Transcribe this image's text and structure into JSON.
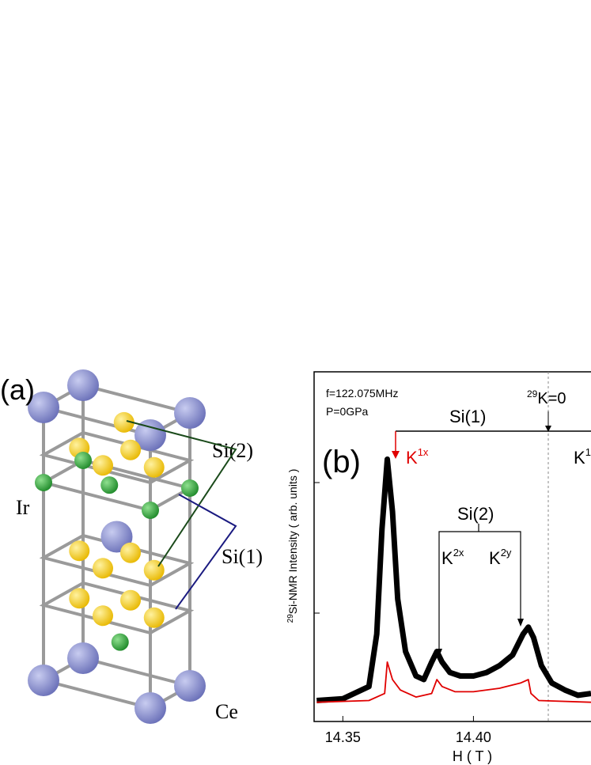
{
  "panel_a": {
    "label": "(a)",
    "atoms": [
      "Si(2)",
      "Ir",
      "Si(1)",
      "Ce"
    ]
  },
  "chart_data": {
    "type": "line",
    "panel_label": "(b)",
    "x_label": "H ( T )",
    "y_label": {
      "sup": "29",
      "text": "Si-NMR Intensity ( arb. units )"
    },
    "conditions": [
      "f=122.075MHz",
      "P=0GPa"
    ],
    "annotations": {
      "k_zero": {
        "sup": "29",
        "text": "K=0"
      },
      "si1": "Si(1)",
      "si2": "Si(2)",
      "k1x": {
        "text": "K",
        "sup": "1x"
      },
      "k1": {
        "text": "K",
        "sup": "1"
      },
      "k2x": {
        "text": "K",
        "sup": "2x"
      },
      "k2y": {
        "text": "K",
        "sup": "2y"
      }
    },
    "xlim": [
      14.339,
      14.445
    ],
    "ylim": [
      0,
      1
    ],
    "xticks": [
      14.35,
      {
        "value": 14.4,
        "label": "14.40"
      }
    ],
    "series": [
      {
        "color": "#000000",
        "x": [
          14.34,
          14.35,
          14.36,
          14.363,
          14.365,
          14.367,
          14.369,
          14.371,
          14.374,
          14.378,
          14.381,
          14.384,
          14.386,
          14.388,
          14.391,
          14.395,
          14.4,
          14.405,
          14.41,
          14.415,
          14.419,
          14.421,
          14.423,
          14.426,
          14.43,
          14.435,
          14.44,
          14.445
        ],
        "values": [
          0.06,
          0.065,
          0.1,
          0.25,
          0.55,
          0.75,
          0.6,
          0.35,
          0.2,
          0.13,
          0.12,
          0.17,
          0.2,
          0.17,
          0.14,
          0.13,
          0.13,
          0.14,
          0.16,
          0.19,
          0.25,
          0.27,
          0.24,
          0.16,
          0.11,
          0.09,
          0.075,
          0.08
        ]
      },
      {
        "color": "#e00000",
        "x": [
          14.34,
          14.36,
          14.366,
          14.367,
          14.369,
          14.372,
          14.378,
          14.384,
          14.386,
          14.388,
          14.393,
          14.4,
          14.41,
          14.418,
          14.421,
          14.422,
          14.425,
          14.445
        ],
        "values": [
          0.055,
          0.06,
          0.08,
          0.17,
          0.12,
          0.09,
          0.07,
          0.08,
          0.12,
          0.1,
          0.085,
          0.085,
          0.095,
          0.11,
          0.12,
          0.08,
          0.06,
          0.055
        ]
      }
    ]
  }
}
